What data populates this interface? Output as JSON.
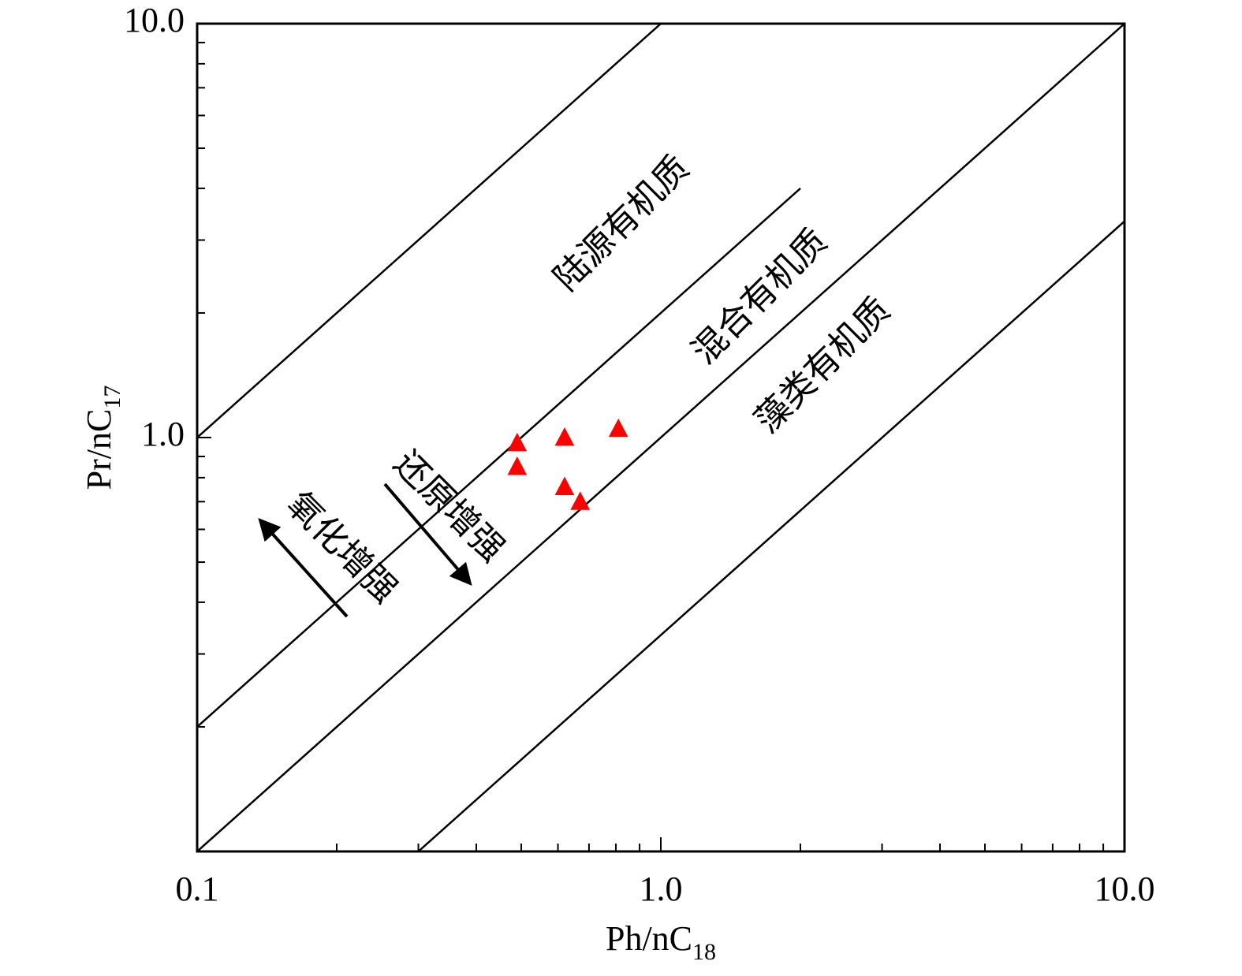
{
  "chart_data": {
    "type": "scatter",
    "title": "",
    "xlabel": {
      "base": "Ph/nC",
      "sub": "18"
    },
    "ylabel": {
      "base": "Pr/nC",
      "sub": "17"
    },
    "x_scale": "log",
    "y_scale": "log",
    "xlim": [
      0.1,
      10
    ],
    "ylim": [
      0.1,
      10
    ],
    "x_ticks": [
      {
        "value": 0.1,
        "label": "0.1"
      },
      {
        "value": 1,
        "label": "1.0"
      },
      {
        "value": 10,
        "label": "10.0"
      }
    ],
    "y_ticks": [
      {
        "value": 1,
        "label": "1.0"
      },
      {
        "value": 10,
        "label": "10.0"
      }
    ],
    "grid": false,
    "boundary_lines": [
      {
        "x": [
          0.1,
          1.0
        ],
        "y": [
          1.0,
          10.0
        ]
      },
      {
        "x": [
          0.1,
          2.0
        ],
        "y": [
          0.2,
          4.0
        ]
      },
      {
        "x": [
          0.1,
          10.0
        ],
        "y": [
          0.1,
          10.0
        ]
      },
      {
        "x": [
          0.3,
          10.0
        ],
        "y": [
          0.1,
          3.33
        ]
      }
    ],
    "zones": [
      {
        "label": "陆源有机质"
      },
      {
        "label": "混合有机质"
      },
      {
        "label": "藻类有机质"
      }
    ],
    "annotations": [
      {
        "label": "氧化增强",
        "arrow": "up-left"
      },
      {
        "label": "还原增强",
        "arrow": "down-right"
      }
    ],
    "series": [
      {
        "marker": "triangle",
        "color": "#ff0000",
        "points": [
          {
            "x": 0.49,
            "y": 0.97
          },
          {
            "x": 0.49,
            "y": 0.85
          },
          {
            "x": 0.62,
            "y": 1.0
          },
          {
            "x": 0.81,
            "y": 1.05
          },
          {
            "x": 0.62,
            "y": 0.76
          },
          {
            "x": 0.67,
            "y": 0.7
          }
        ]
      }
    ]
  }
}
